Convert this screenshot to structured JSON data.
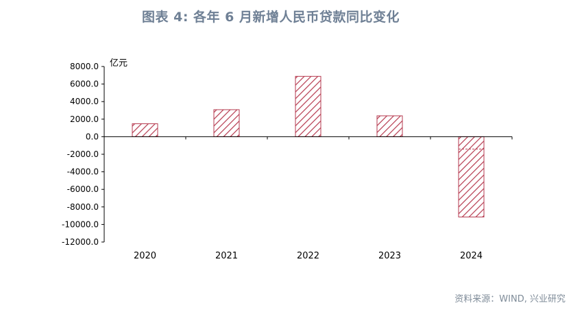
{
  "title": "图表 4:  各年 6 月新增人民币贷款同比变化",
  "source": "资料来源：WIND, 兴业研究",
  "chart_data": {
    "type": "bar",
    "unit_label": "亿元",
    "categories": [
      "2020",
      "2021",
      "2022",
      "2023",
      "2024"
    ],
    "values": [
      1480,
      3080,
      6880,
      2380,
      -9150
    ],
    "overlap_marker": {
      "category": "2024",
      "value": -1400
    },
    "ylim": [
      -12000,
      8000
    ],
    "yticks": [
      8000,
      6000,
      4000,
      2000,
      0,
      -2000,
      -4000,
      -6000,
      -8000,
      -10000,
      -12000
    ],
    "ytick_labels": [
      "8000.0",
      "6000.0",
      "4000.0",
      "2000.0",
      "0.0",
      "-2000.0",
      "-4000.0",
      "-6000.0",
      "-8000.0",
      "-10000.0",
      "-12000.0"
    ],
    "bar_color": "#b63a4f",
    "grid": false
  }
}
